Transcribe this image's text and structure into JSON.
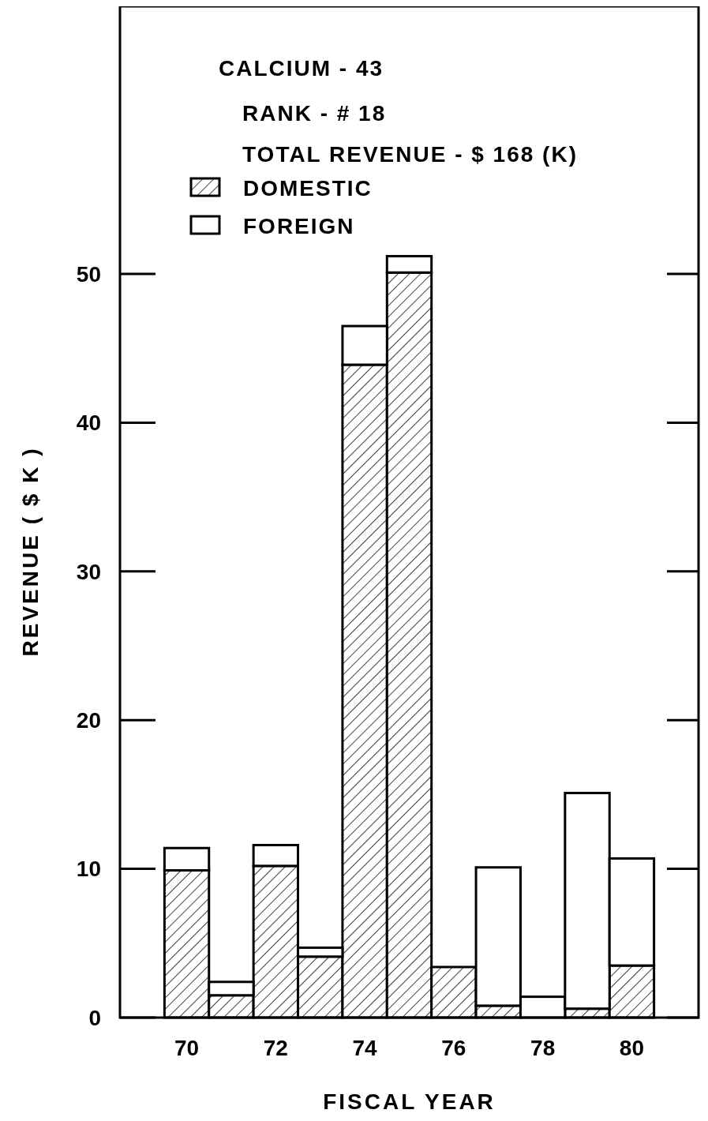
{
  "chart_data": {
    "type": "bar",
    "stacked": true,
    "title": "CALCIUM - 43",
    "subtitle": "RANK - # 18",
    "annotations": [
      "TOTAL REVENUE - $ 168 (K)"
    ],
    "xlabel": "FISCAL YEAR",
    "ylabel": "REVENUE ( $ K )",
    "categories": [
      "70",
      null,
      "72",
      null,
      "74",
      null,
      "76",
      null,
      "78",
      null,
      "80"
    ],
    "series": [
      {
        "name": "DOMESTIC",
        "color": "#000000",
        "values": [
          9.9,
          1.5,
          10.2,
          4.1,
          43.9,
          50.1,
          3.4,
          0.8,
          0,
          0.6,
          3.5
        ]
      },
      {
        "name": "FOREIGN",
        "color": "#ffffff",
        "values": [
          1.5,
          0.9,
          1.4,
          0.6,
          2.6,
          1.1,
          0,
          9.3,
          1.4,
          14.5,
          7.2
        ]
      }
    ],
    "ylim": [
      0,
      68
    ],
    "yticks": [
      0,
      10,
      20,
      30,
      40,
      50
    ],
    "legend": "top left"
  }
}
